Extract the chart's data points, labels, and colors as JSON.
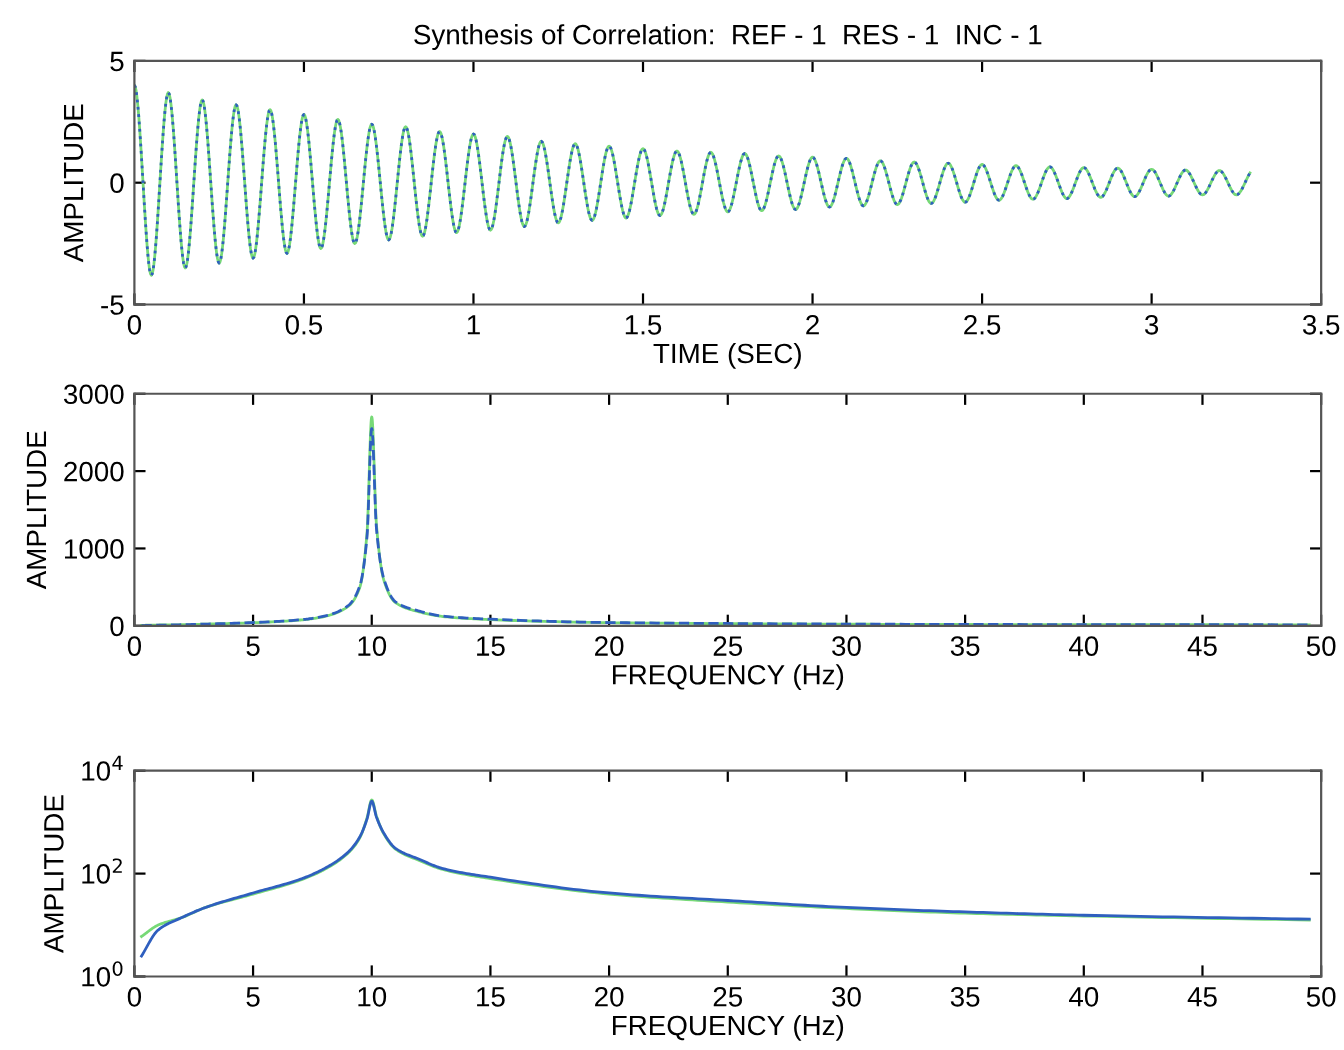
{
  "chart_data": [
    {
      "type": "line",
      "title": "Synthesis of Correlation:  REF - 1  RES - 1  INC - 1",
      "xlabel": "TIME (SEC)",
      "ylabel": "AMPLITUDE",
      "x": [
        0,
        0.05,
        0.1,
        0.15,
        0.2,
        0.25,
        0.3,
        0.35,
        0.4,
        0.45,
        0.5,
        0.55,
        0.6,
        0.65,
        0.7,
        0.75,
        0.8,
        0.85,
        0.9,
        0.95,
        1.0,
        1.05,
        1.1,
        1.15,
        1.2,
        1.25,
        1.3,
        1.35,
        1.4,
        1.45,
        1.5,
        1.55,
        1.6,
        1.65,
        1.7,
        1.75,
        1.8,
        1.85,
        1.9,
        1.95,
        2.0,
        2.05,
        2.1,
        2.15,
        2.2,
        2.25,
        2.3,
        2.35,
        2.4,
        2.45,
        2.5,
        2.55,
        2.6,
        2.65,
        2.7,
        2.75,
        2.8,
        2.85,
        2.9,
        2.95,
        3.0,
        3.05,
        3.1,
        3.15,
        3.2,
        3.25,
        3.29
      ],
      "series": [
        {
          "color": "#77d977",
          "line_style": "solid",
          "values": [
            4.0,
            -3.8,
            3.7,
            -3.5,
            3.4,
            -3.3,
            3.2,
            -3.1,
            3.0,
            -2.9,
            2.8,
            -2.7,
            2.6,
            -2.5,
            2.4,
            -2.35,
            2.3,
            -2.2,
            2.1,
            -2.05,
            2.0,
            -1.95,
            1.9,
            -1.8,
            1.7,
            -1.65,
            1.6,
            -1.55,
            1.5,
            -1.45,
            1.4,
            -1.35,
            1.3,
            -1.3,
            1.25,
            -1.2,
            1.2,
            -1.15,
            1.1,
            -1.1,
            1.05,
            -1.0,
            1.0,
            -0.95,
            0.9,
            -0.9,
            0.85,
            -0.85,
            0.8,
            -0.8,
            0.75,
            -0.72,
            0.7,
            -0.68,
            0.65,
            -0.65,
            0.62,
            -0.6,
            0.6,
            -0.57,
            0.55,
            -0.55,
            0.52,
            -0.5,
            0.5,
            -0.5,
            0.4
          ]
        },
        {
          "color": "#2f5fbf",
          "line_style": "dotted",
          "values": [
            4.0,
            -3.8,
            3.7,
            -3.5,
            3.4,
            -3.3,
            3.2,
            -3.1,
            3.0,
            -2.9,
            2.8,
            -2.7,
            2.6,
            -2.5,
            2.4,
            -2.35,
            2.3,
            -2.2,
            2.1,
            -2.05,
            2.0,
            -1.95,
            1.9,
            -1.8,
            1.7,
            -1.65,
            1.6,
            -1.55,
            1.5,
            -1.45,
            1.4,
            -1.35,
            1.3,
            -1.3,
            1.25,
            -1.2,
            1.2,
            -1.15,
            1.1,
            -1.1,
            1.05,
            -1.0,
            1.0,
            -0.95,
            0.9,
            -0.9,
            0.85,
            -0.85,
            0.8,
            -0.8,
            0.75,
            -0.72,
            0.7,
            -0.68,
            0.65,
            -0.65,
            0.62,
            -0.6,
            0.6,
            -0.57,
            0.55,
            -0.55,
            0.52,
            -0.5,
            0.5,
            -0.5,
            0.4
          ]
        }
      ],
      "xlim": [
        0,
        3.5
      ],
      "xticks": [
        0,
        0.5,
        1,
        1.5,
        2,
        2.5,
        3,
        3.5
      ],
      "ylim": [
        -5,
        5
      ],
      "yticks": [
        -5,
        0,
        5
      ]
    },
    {
      "type": "line",
      "xlabel": "FREQUENCY (Hz)",
      "ylabel": "AMPLITUDE",
      "x": [
        0.3,
        1,
        2,
        3,
        5,
        7,
        8,
        9,
        9.5,
        9.8,
        10,
        10.2,
        10.5,
        11,
        12,
        13,
        15,
        20,
        25,
        30,
        35,
        40,
        49.5
      ],
      "series": [
        {
          "color": "#77d977",
          "line_style": "solid",
          "values": [
            6,
            10,
            14,
            22,
            40,
            75,
            120,
            250,
            500,
            1200,
            2700,
            1300,
            600,
            300,
            180,
            120,
            80,
            40,
            28,
            21,
            17,
            15,
            12.5
          ]
        },
        {
          "color": "#2f5fbf",
          "line_style": "dashed",
          "values": [
            2.5,
            8,
            14,
            22,
            42,
            78,
            125,
            260,
            520,
            1150,
            2550,
            1250,
            620,
            310,
            190,
            125,
            85,
            42,
            30,
            22,
            18,
            15.5,
            13
          ]
        }
      ],
      "xlim": [
        0,
        50
      ],
      "xticks": [
        0,
        5,
        10,
        15,
        20,
        25,
        30,
        35,
        40,
        45,
        50
      ],
      "ylim": [
        0,
        3000
      ],
      "yticks": [
        0,
        1000,
        2000,
        3000
      ]
    },
    {
      "type": "line",
      "xlabel": "FREQUENCY (Hz)",
      "ylabel": "AMPLITUDE",
      "log": "y",
      "x": [
        0.3,
        1,
        2,
        3,
        5,
        7,
        8,
        9,
        9.5,
        9.8,
        10,
        10.2,
        10.5,
        11,
        12,
        13,
        15,
        20,
        25,
        30,
        35,
        40,
        49.5
      ],
      "series": [
        {
          "color": "#77d977",
          "line_style": "solid",
          "values": [
            6,
            10,
            14,
            22,
            40,
            75,
            120,
            250,
            500,
            1200,
            2700,
            1300,
            600,
            300,
            180,
            120,
            80,
            40,
            28,
            21,
            17,
            15,
            12.5
          ]
        },
        {
          "color": "#2f5fbf",
          "line_style": "solid",
          "values": [
            2.5,
            8,
            14,
            22,
            42,
            78,
            125,
            260,
            520,
            1150,
            2550,
            1250,
            620,
            310,
            190,
            125,
            85,
            42,
            30,
            22,
            18,
            15.5,
            13
          ]
        }
      ],
      "xlim": [
        0,
        50
      ],
      "xticks": [
        0,
        5,
        10,
        15,
        20,
        25,
        30,
        35,
        40,
        45,
        50
      ],
      "ylim": [
        1,
        10000
      ],
      "yticks": [
        {
          "value": 1,
          "label": "10$^{0}$"
        },
        {
          "value": 100,
          "label": "10$^{2}$"
        },
        {
          "value": 10000,
          "label": "10$^{4}$"
        }
      ]
    }
  ]
}
